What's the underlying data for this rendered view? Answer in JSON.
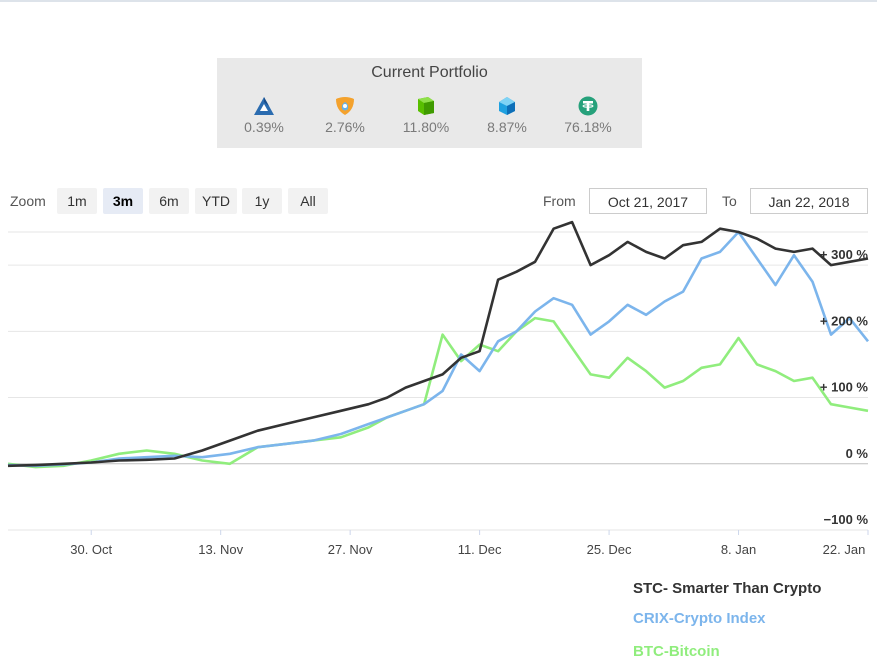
{
  "portfolio": {
    "title": "Current Portfolio",
    "coins": [
      {
        "icon": "ark-icon",
        "color": "#2b6cb0",
        "percent": "0.39%"
      },
      {
        "icon": "nem-icon",
        "color": "#f4a22d",
        "percent": "2.76%"
      },
      {
        "icon": "neo-icon",
        "color": "#58bf00",
        "percent": "11.80%"
      },
      {
        "icon": "waves-icon",
        "color": "#1fa1e0",
        "percent": "8.87%"
      },
      {
        "icon": "tether-icon",
        "color": "#26a17b",
        "percent": "76.18%"
      }
    ]
  },
  "zoom": {
    "label": "Zoom",
    "buttons": [
      "1m",
      "3m",
      "6m",
      "YTD",
      "1y",
      "All"
    ],
    "selected": "3m"
  },
  "range": {
    "from_label": "From",
    "from_value": "Oct 21, 2017",
    "to_label": "To",
    "to_value": "Jan 22, 2018"
  },
  "legend": [
    {
      "label": "STC- Smarter Than Crypto",
      "color": "#333333"
    },
    {
      "label": "CRIX-Crypto Index",
      "color": "#7cb5ec"
    },
    {
      "label": "BTC-Bitcoin",
      "color": "#90ed7d"
    }
  ],
  "chart_data": {
    "type": "line",
    "ylim": [
      -100,
      350
    ],
    "yticks": [
      -100,
      0,
      100,
      200,
      300
    ],
    "ytick_labels": [
      "−100 %",
      "0 %",
      "+ 100 %",
      "+ 200 %",
      "+ 300 %"
    ],
    "xlim": [
      "2017-10-21",
      "2018-01-22"
    ],
    "xticks": [
      "2017-10-30",
      "2017-11-13",
      "2017-11-27",
      "2017-12-11",
      "2017-12-25",
      "2018-01-08",
      "2018-01-22"
    ],
    "xtick_labels": [
      "30. Oct",
      "13. Nov",
      "27. Nov",
      "11. Dec",
      "25. Dec",
      "8. Jan",
      "22. Jan"
    ],
    "grid": true,
    "series": [
      {
        "name": "STC- Smarter Than Crypto",
        "color": "#333333",
        "x": [
          "2017-10-21",
          "2017-10-24",
          "2017-10-27",
          "2017-10-30",
          "2017-11-02",
          "2017-11-05",
          "2017-11-08",
          "2017-11-11",
          "2017-11-14",
          "2017-11-17",
          "2017-11-20",
          "2017-11-23",
          "2017-11-26",
          "2017-11-29",
          "2017-12-01",
          "2017-12-03",
          "2017-12-05",
          "2017-12-07",
          "2017-12-09",
          "2017-12-11",
          "2017-12-13",
          "2017-12-15",
          "2017-12-17",
          "2017-12-19",
          "2017-12-21",
          "2017-12-23",
          "2017-12-25",
          "2017-12-27",
          "2017-12-29",
          "2017-12-31",
          "2018-01-02",
          "2018-01-04",
          "2018-01-06",
          "2018-01-08",
          "2018-01-10",
          "2018-01-12",
          "2018-01-14",
          "2018-01-16",
          "2018-01-18",
          "2018-01-20",
          "2018-01-22"
        ],
        "y": [
          -3,
          -2,
          0,
          2,
          5,
          6,
          8,
          20,
          35,
          50,
          60,
          70,
          80,
          90,
          100,
          115,
          125,
          135,
          160,
          170,
          278,
          290,
          305,
          355,
          365,
          300,
          315,
          335,
          320,
          310,
          330,
          335,
          355,
          350,
          340,
          325,
          320,
          325,
          300,
          305,
          310
        ]
      },
      {
        "name": "CRIX-Crypto Index",
        "color": "#7cb5ec",
        "x": [
          "2017-10-21",
          "2017-10-24",
          "2017-10-27",
          "2017-10-30",
          "2017-11-02",
          "2017-11-05",
          "2017-11-08",
          "2017-11-11",
          "2017-11-14",
          "2017-11-17",
          "2017-11-20",
          "2017-11-23",
          "2017-11-26",
          "2017-11-29",
          "2017-12-01",
          "2017-12-03",
          "2017-12-05",
          "2017-12-07",
          "2017-12-09",
          "2017-12-11",
          "2017-12-13",
          "2017-12-15",
          "2017-12-17",
          "2017-12-19",
          "2017-12-21",
          "2017-12-23",
          "2017-12-25",
          "2017-12-27",
          "2017-12-29",
          "2017-12-31",
          "2018-01-02",
          "2018-01-04",
          "2018-01-06",
          "2018-01-08",
          "2018-01-10",
          "2018-01-12",
          "2018-01-14",
          "2018-01-16",
          "2018-01-18",
          "2018-01-20",
          "2018-01-22"
        ],
        "y": [
          -2,
          -3,
          -1,
          2,
          8,
          10,
          12,
          10,
          15,
          25,
          30,
          35,
          45,
          60,
          70,
          80,
          90,
          110,
          165,
          140,
          185,
          200,
          230,
          250,
          240,
          195,
          215,
          240,
          225,
          245,
          260,
          310,
          320,
          350,
          310,
          270,
          315,
          275,
          195,
          220,
          185
        ]
      },
      {
        "name": "BTC-Bitcoin",
        "color": "#90ed7d",
        "x": [
          "2017-10-21",
          "2017-10-24",
          "2017-10-27",
          "2017-10-30",
          "2017-11-02",
          "2017-11-05",
          "2017-11-08",
          "2017-11-11",
          "2017-11-14",
          "2017-11-17",
          "2017-11-20",
          "2017-11-23",
          "2017-11-26",
          "2017-11-29",
          "2017-12-01",
          "2017-12-03",
          "2017-12-05",
          "2017-12-07",
          "2017-12-09",
          "2017-12-11",
          "2017-12-13",
          "2017-12-15",
          "2017-12-17",
          "2017-12-19",
          "2017-12-21",
          "2017-12-23",
          "2017-12-25",
          "2017-12-27",
          "2017-12-29",
          "2017-12-31",
          "2018-01-02",
          "2018-01-04",
          "2018-01-06",
          "2018-01-08",
          "2018-01-10",
          "2018-01-12",
          "2018-01-14",
          "2018-01-16",
          "2018-01-18",
          "2018-01-20",
          "2018-01-22"
        ],
        "y": [
          0,
          -5,
          -3,
          5,
          15,
          20,
          15,
          5,
          0,
          25,
          30,
          35,
          40,
          55,
          70,
          80,
          90,
          195,
          155,
          180,
          170,
          200,
          220,
          215,
          175,
          135,
          130,
          160,
          140,
          115,
          125,
          145,
          150,
          190,
          150,
          140,
          125,
          130,
          90,
          85,
          80
        ]
      }
    ]
  }
}
